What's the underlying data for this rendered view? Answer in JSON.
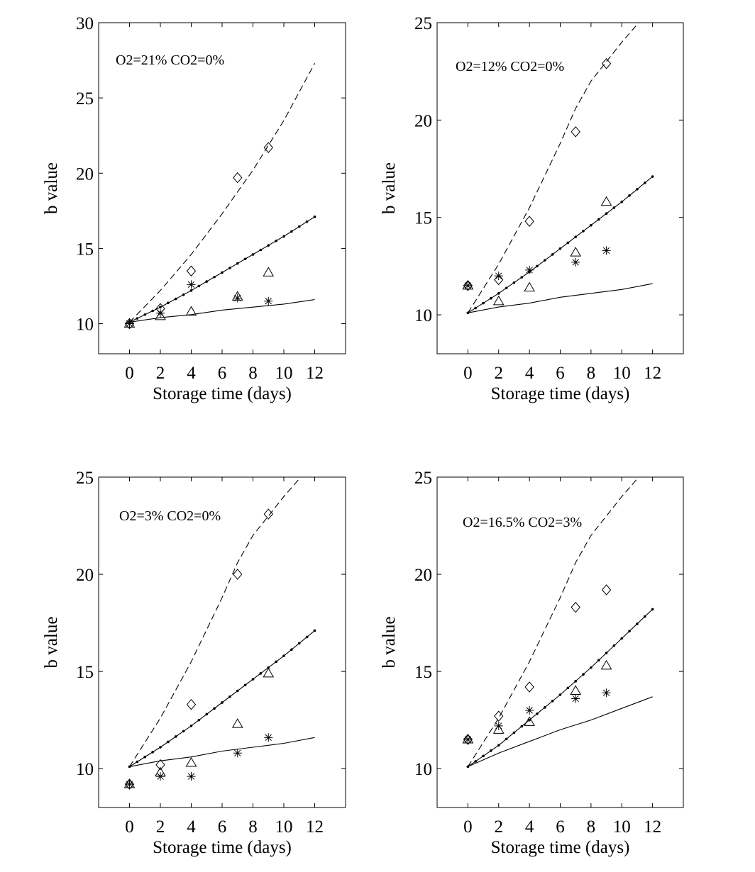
{
  "chart_data": [
    {
      "type": "line",
      "annotation": "O2=21% CO2=0%",
      "xlabel": "Storage time (days)",
      "ylabel": "b value",
      "xlim": [
        -2,
        14
      ],
      "ylim": [
        8,
        30
      ],
      "xticks": [
        0,
        2,
        4,
        6,
        8,
        10,
        12
      ],
      "yticks": [
        10,
        15,
        20,
        25,
        30
      ],
      "grid": false,
      "series": [
        {
          "style": "dashed",
          "x": [
            0,
            2,
            4,
            6,
            8,
            10,
            12
          ],
          "y": [
            10.1,
            12.2,
            14.6,
            17.3,
            20.2,
            23.5,
            27.3
          ]
        },
        {
          "style": "dotted-markers",
          "x": [
            0,
            2,
            4,
            6,
            8,
            10,
            12
          ],
          "y": [
            10.1,
            11.1,
            12.2,
            13.4,
            14.6,
            15.8,
            17.1
          ]
        },
        {
          "style": "solid",
          "x": [
            0,
            2,
            4,
            6,
            8,
            10,
            12
          ],
          "y": [
            10.1,
            10.4,
            10.6,
            10.9,
            11.1,
            11.3,
            11.6
          ]
        },
        {
          "style": "diamond",
          "x": [
            0,
            2,
            4,
            7,
            9
          ],
          "y": [
            10.0,
            11.0,
            13.5,
            19.7,
            21.7
          ]
        },
        {
          "style": "triangle",
          "x": [
            0,
            2,
            4,
            7,
            9
          ],
          "y": [
            10.0,
            10.5,
            10.8,
            11.8,
            13.4
          ]
        },
        {
          "style": "asterisk",
          "x": [
            0,
            2,
            4,
            7,
            9
          ],
          "y": [
            10.0,
            10.7,
            12.6,
            11.7,
            11.5
          ]
        }
      ]
    },
    {
      "type": "line",
      "annotation": "O2=12% CO2=0%",
      "xlabel": "Storage time (days)",
      "ylabel": "b value",
      "xlim": [
        -2,
        14
      ],
      "ylim": [
        8,
        25
      ],
      "xticks": [
        0,
        2,
        4,
        6,
        8,
        10,
        12
      ],
      "yticks": [
        10,
        15,
        20,
        25
      ],
      "grid": false,
      "series": [
        {
          "style": "dashed",
          "x": [
            0,
            2,
            4,
            6,
            7,
            8,
            10,
            11.1
          ],
          "y": [
            10.1,
            12.6,
            15.5,
            18.8,
            20.6,
            22.0,
            24.0,
            25.0
          ]
        },
        {
          "style": "dotted-markers",
          "x": [
            0,
            2,
            4,
            6,
            8,
            10,
            12
          ],
          "y": [
            10.1,
            11.1,
            12.2,
            13.4,
            14.6,
            15.8,
            17.1
          ]
        },
        {
          "style": "solid",
          "x": [
            0,
            2,
            4,
            6,
            8,
            10,
            12
          ],
          "y": [
            10.1,
            10.4,
            10.6,
            10.9,
            11.1,
            11.3,
            11.6
          ]
        },
        {
          "style": "diamond",
          "x": [
            0,
            2,
            4,
            7,
            9
          ],
          "y": [
            11.5,
            11.8,
            14.8,
            19.4,
            22.9
          ]
        },
        {
          "style": "triangle",
          "x": [
            0,
            2,
            4,
            7,
            9
          ],
          "y": [
            11.5,
            10.7,
            11.4,
            13.2,
            15.8
          ]
        },
        {
          "style": "asterisk",
          "x": [
            0,
            2,
            4,
            7,
            9
          ],
          "y": [
            11.5,
            12.0,
            12.3,
            12.7,
            13.3
          ]
        }
      ]
    },
    {
      "type": "line",
      "annotation": "O2=3% CO2=0%",
      "xlabel": "Storage time (days)",
      "ylabel": "b value",
      "xlim": [
        -2,
        14
      ],
      "ylim": [
        8,
        25
      ],
      "xticks": [
        0,
        2,
        4,
        6,
        8,
        10,
        12
      ],
      "yticks": [
        10,
        15,
        20,
        25
      ],
      "grid": false,
      "series": [
        {
          "style": "dashed",
          "x": [
            0,
            2,
            4,
            6,
            7,
            8,
            10,
            11.1
          ],
          "y": [
            10.1,
            12.6,
            15.5,
            18.8,
            20.6,
            22.0,
            24.0,
            25.0
          ]
        },
        {
          "style": "dotted-markers",
          "x": [
            0,
            2,
            4,
            6,
            8,
            10,
            12
          ],
          "y": [
            10.1,
            11.1,
            12.2,
            13.4,
            14.6,
            15.8,
            17.1
          ]
        },
        {
          "style": "solid",
          "x": [
            0,
            2,
            4,
            6,
            8,
            10,
            12
          ],
          "y": [
            10.1,
            10.4,
            10.6,
            10.9,
            11.1,
            11.3,
            11.6
          ]
        },
        {
          "style": "diamond",
          "x": [
            0,
            2,
            4,
            7,
            9
          ],
          "y": [
            9.2,
            10.2,
            13.3,
            20.0,
            23.1
          ]
        },
        {
          "style": "triangle",
          "x": [
            0,
            2,
            4,
            7,
            9
          ],
          "y": [
            9.2,
            9.8,
            10.3,
            12.3,
            14.9
          ]
        },
        {
          "style": "asterisk",
          "x": [
            0,
            2,
            4,
            7,
            9
          ],
          "y": [
            9.2,
            9.6,
            9.6,
            10.8,
            11.6
          ]
        }
      ]
    },
    {
      "type": "line",
      "annotation": "O2=16.5% CO2=3%",
      "xlabel": "Storage time (days)",
      "ylabel": "b value",
      "xlim": [
        -2,
        14
      ],
      "ylim": [
        8,
        25
      ],
      "xticks": [
        0,
        2,
        4,
        6,
        8,
        10,
        12
      ],
      "yticks": [
        10,
        15,
        20,
        25
      ],
      "grid": false,
      "series": [
        {
          "style": "dashed",
          "x": [
            0,
            2,
            4,
            6,
            7,
            8,
            10,
            11.1
          ],
          "y": [
            10.1,
            12.6,
            15.5,
            18.8,
            20.6,
            22.0,
            24.0,
            25.0
          ]
        },
        {
          "style": "dotted-markers",
          "x": [
            0,
            2,
            4,
            6,
            8,
            10,
            12
          ],
          "y": [
            10.1,
            11.2,
            12.5,
            13.8,
            15.2,
            16.7,
            18.2
          ]
        },
        {
          "style": "solid",
          "x": [
            0,
            2,
            4,
            6,
            8,
            10,
            12
          ],
          "y": [
            10.1,
            10.8,
            11.4,
            12.0,
            12.5,
            13.1,
            13.7
          ]
        },
        {
          "style": "diamond",
          "x": [
            0,
            2,
            4,
            7,
            9
          ],
          "y": [
            11.5,
            12.7,
            14.2,
            18.3,
            19.2
          ]
        },
        {
          "style": "triangle",
          "x": [
            0,
            2,
            4,
            7,
            9
          ],
          "y": [
            11.5,
            12.0,
            12.4,
            14.0,
            15.3
          ]
        },
        {
          "style": "asterisk",
          "x": [
            0,
            2,
            4,
            7,
            9
          ],
          "y": [
            11.5,
            12.2,
            13.0,
            13.6,
            13.9
          ]
        }
      ]
    }
  ]
}
